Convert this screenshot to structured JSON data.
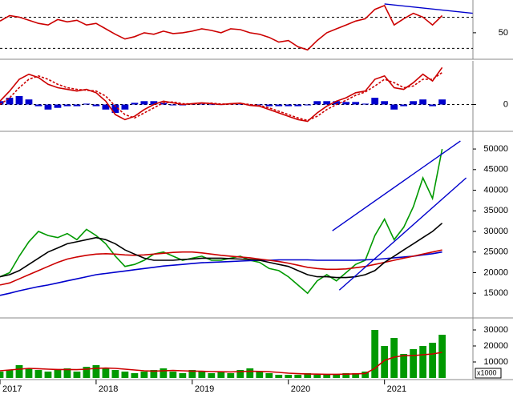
{
  "chart_data": [
    {
      "type": "line",
      "xlim": [
        2017,
        2021.92
      ],
      "ylim": [
        18,
        90
      ],
      "yticks": [
        50
      ],
      "ref_lines": [
        30,
        70
      ],
      "x": [
        2017.0,
        2017.1,
        2017.2,
        2017.3,
        2017.4,
        2017.5,
        2017.6,
        2017.7,
        2017.8,
        2017.9,
        2018.0,
        2018.1,
        2018.2,
        2018.3,
        2018.4,
        2018.5,
        2018.6,
        2018.7,
        2018.8,
        2018.9,
        2019.0,
        2019.1,
        2019.2,
        2019.3,
        2019.4,
        2019.5,
        2019.6,
        2019.7,
        2019.8,
        2019.9,
        2020.0,
        2020.1,
        2020.2,
        2020.3,
        2020.4,
        2020.5,
        2020.6,
        2020.7,
        2020.8,
        2020.9,
        2021.0,
        2021.1,
        2021.2,
        2021.3,
        2021.4,
        2021.5,
        2021.6
      ],
      "series": [
        {
          "color": "#cc0000",
          "values": [
            65,
            72,
            70,
            66,
            62,
            60,
            67,
            64,
            66,
            60,
            62,
            55,
            48,
            42,
            45,
            50,
            48,
            52,
            49,
            50,
            52,
            55,
            53,
            50,
            55,
            54,
            50,
            48,
            44,
            38,
            40,
            32,
            28,
            40,
            50,
            55,
            60,
            65,
            68,
            80,
            85,
            60,
            68,
            75,
            70,
            60,
            72
          ]
        }
      ],
      "trendlines": [
        {
          "color": "#0000cc",
          "x": [
            2021.0,
            2021.917
          ],
          "y": [
            87,
            75
          ]
        }
      ]
    },
    {
      "type": "line",
      "xlim": [
        2017,
        2021.92
      ],
      "ylim": [
        -1500,
        2500
      ],
      "yticks": [
        0
      ],
      "ref_lines": [
        0
      ],
      "x": [
        2017.0,
        2017.1,
        2017.2,
        2017.3,
        2017.4,
        2017.5,
        2017.6,
        2017.7,
        2017.8,
        2017.9,
        2018.0,
        2018.1,
        2018.2,
        2018.3,
        2018.4,
        2018.5,
        2018.6,
        2018.7,
        2018.8,
        2018.9,
        2019.0,
        2019.1,
        2019.2,
        2019.3,
        2019.4,
        2019.5,
        2019.6,
        2019.7,
        2019.8,
        2019.9,
        2020.0,
        2020.1,
        2020.2,
        2020.3,
        2020.4,
        2020.5,
        2020.6,
        2020.7,
        2020.8,
        2020.9,
        2021.0,
        2021.1,
        2021.2,
        2021.3,
        2021.4,
        2021.5,
        2021.6
      ],
      "series": [
        {
          "type": "bar",
          "color": "#0000cc",
          "values": [
            200,
            400,
            500,
            300,
            -100,
            -300,
            -200,
            -100,
            -100,
            50,
            -100,
            -300,
            -500,
            -300,
            100,
            200,
            200,
            100,
            -50,
            -50,
            20,
            40,
            -30,
            -30,
            30,
            20,
            -50,
            -40,
            -100,
            -100,
            -100,
            -100,
            -50,
            200,
            200,
            200,
            150,
            150,
            50,
            400,
            200,
            -300,
            -100,
            200,
            300,
            -100,
            300
          ]
        },
        {
          "color": "#cc0000",
          "values": [
            200,
            800,
            1500,
            1800,
            1600,
            1200,
            1000,
            900,
            800,
            900,
            700,
            200,
            -600,
            -900,
            -700,
            -300,
            0,
            200,
            100,
            0,
            50,
            100,
            50,
            0,
            50,
            80,
            -50,
            -100,
            -300,
            -500,
            -700,
            -900,
            -1000,
            -500,
            -100,
            200,
            400,
            700,
            800,
            1500,
            1700,
            1000,
            900,
            1300,
            1800,
            1400,
            2200
          ]
        },
        {
          "color": "#cc0000",
          "dashed": true,
          "values": [
            0,
            400,
            1000,
            1500,
            1700,
            1500,
            1200,
            1000,
            900,
            850,
            800,
            500,
            -100,
            -600,
            -800,
            -500,
            -200,
            100,
            150,
            50,
            30,
            60,
            80,
            30,
            20,
            60,
            0,
            -60,
            -200,
            -400,
            -600,
            -800,
            -950,
            -700,
            -300,
            0,
            250,
            550,
            750,
            1100,
            1500,
            1300,
            1000,
            1100,
            1500,
            1500,
            1900
          ]
        }
      ]
    },
    {
      "type": "line",
      "xlim": [
        2017,
        2021.92
      ],
      "ylim": [
        9400,
        53900
      ],
      "yticks": [
        15000,
        20000,
        25000,
        30000,
        35000,
        40000,
        45000,
        50000
      ],
      "x": [
        2017.0,
        2017.1,
        2017.2,
        2017.3,
        2017.4,
        2017.5,
        2017.6,
        2017.7,
        2017.8,
        2017.9,
        2018.0,
        2018.1,
        2018.2,
        2018.3,
        2018.4,
        2018.5,
        2018.6,
        2018.7,
        2018.8,
        2018.9,
        2019.0,
        2019.1,
        2019.2,
        2019.3,
        2019.4,
        2019.5,
        2019.6,
        2019.7,
        2019.8,
        2019.9,
        2020.0,
        2020.1,
        2020.2,
        2020.3,
        2020.4,
        2020.5,
        2020.6,
        2020.7,
        2020.8,
        2020.9,
        2021.0,
        2021.1,
        2021.2,
        2021.3,
        2021.4,
        2021.5,
        2021.6
      ],
      "series": [
        {
          "color": "#009900",
          "values": [
            19000,
            20000,
            24000,
            27500,
            30000,
            29000,
            28500,
            29500,
            28000,
            30500,
            29000,
            27000,
            24000,
            21500,
            22000,
            23000,
            24500,
            25000,
            24000,
            23000,
            23500,
            24000,
            23000,
            23000,
            23500,
            24000,
            23000,
            22500,
            21000,
            20500,
            19000,
            17000,
            15000,
            18000,
            19500,
            18000,
            20000,
            22000,
            23000,
            29000,
            33000,
            28000,
            31000,
            36000,
            43000,
            38000,
            50000
          ]
        },
        {
          "color": "#0000cc",
          "values": [
            14500,
            15000,
            15600,
            16100,
            16600,
            17000,
            17500,
            18000,
            18500,
            19000,
            19500,
            19800,
            20100,
            20400,
            20700,
            21000,
            21300,
            21600,
            21800,
            22000,
            22200,
            22400,
            22500,
            22600,
            22700,
            22800,
            22900,
            23000,
            23000,
            23100,
            23100,
            23100,
            23100,
            23000,
            23000,
            23000,
            23000,
            23000,
            23100,
            23200,
            23400,
            23600,
            23800,
            24000,
            24300,
            24600,
            25000
          ]
        },
        {
          "color": "#cc0000",
          "values": [
            17000,
            17500,
            18500,
            19500,
            20500,
            21500,
            22500,
            23300,
            23800,
            24200,
            24500,
            24600,
            24500,
            24300,
            24200,
            24300,
            24500,
            24700,
            24900,
            25000,
            25000,
            24800,
            24500,
            24200,
            24000,
            23800,
            23600,
            23300,
            23000,
            22700,
            22300,
            21800,
            21300,
            21000,
            20800,
            20800,
            20900,
            21200,
            21500,
            22000,
            22500,
            23000,
            23500,
            24000,
            24500,
            25000,
            25500
          ]
        },
        {
          "color": "#000000",
          "values": [
            19000,
            19500,
            20500,
            22000,
            23500,
            25000,
            26000,
            27000,
            27500,
            28000,
            28500,
            28000,
            27000,
            25500,
            24500,
            23500,
            23000,
            23000,
            23000,
            23200,
            23300,
            23500,
            23500,
            23500,
            23400,
            23300,
            23200,
            23000,
            22500,
            22000,
            21500,
            20500,
            19500,
            19000,
            19000,
            18800,
            18800,
            19000,
            19500,
            20500,
            22500,
            24000,
            25500,
            27000,
            28500,
            30000,
            32000
          ]
        }
      ],
      "trendlines": [
        {
          "color": "#0000cc",
          "x": [
            2020.458,
            2021.79
          ],
          "y": [
            30156,
            51945
          ]
        },
        {
          "color": "#0000cc",
          "x": [
            2020.53,
            2021.85
          ],
          "y": [
            15760,
            43000
          ]
        }
      ]
    },
    {
      "type": "bar",
      "xlim": [
        2017,
        2021.92
      ],
      "ylim": [
        0,
        37000
      ],
      "yticks": [
        10000,
        20000,
        30000
      ],
      "unit_label": "x1000",
      "xticks": [
        2017,
        2018,
        2019,
        2020,
        2021
      ],
      "x": [
        2017.0,
        2017.1,
        2017.2,
        2017.3,
        2017.4,
        2017.5,
        2017.6,
        2017.7,
        2017.8,
        2017.9,
        2018.0,
        2018.1,
        2018.2,
        2018.3,
        2018.4,
        2018.5,
        2018.6,
        2018.7,
        2018.8,
        2018.9,
        2019.0,
        2019.1,
        2019.2,
        2019.3,
        2019.4,
        2019.5,
        2019.6,
        2019.7,
        2019.8,
        2019.9,
        2020.0,
        2020.1,
        2020.2,
        2020.3,
        2020.4,
        2020.5,
        2020.6,
        2020.7,
        2020.8,
        2020.9,
        2021.0,
        2021.1,
        2021.2,
        2021.3,
        2021.4,
        2021.5,
        2021.6
      ],
      "series": [
        {
          "color": "#009900",
          "values": [
            4000,
            5000,
            8000,
            6000,
            5000,
            4000,
            5000,
            6000,
            4000,
            7000,
            8000,
            6000,
            5000,
            4000,
            3000,
            4000,
            5000,
            6000,
            4000,
            3000,
            5000,
            4000,
            3000,
            4000,
            3000,
            5000,
            6000,
            4000,
            3000,
            2000,
            2000,
            2000,
            3000,
            2000,
            2000,
            2000,
            3000,
            3000,
            4000,
            30000,
            20000,
            25000,
            15000,
            18000,
            20000,
            22000,
            27000
          ]
        },
        {
          "type": "line",
          "color": "#cc0000",
          "values": [
            4500,
            5000,
            5500,
            6000,
            5800,
            5500,
            5300,
            5300,
            5200,
            5500,
            6000,
            6200,
            6000,
            5500,
            5000,
            4500,
            4300,
            4500,
            4700,
            4500,
            4300,
            4200,
            4000,
            3900,
            3800,
            4000,
            4200,
            4100,
            3900,
            3500,
            3000,
            2700,
            2500,
            2400,
            2300,
            2300,
            2400,
            2600,
            2800,
            6000,
            11000,
            13000,
            14000,
            14000,
            14500,
            15000,
            16000
          ]
        }
      ]
    }
  ]
}
